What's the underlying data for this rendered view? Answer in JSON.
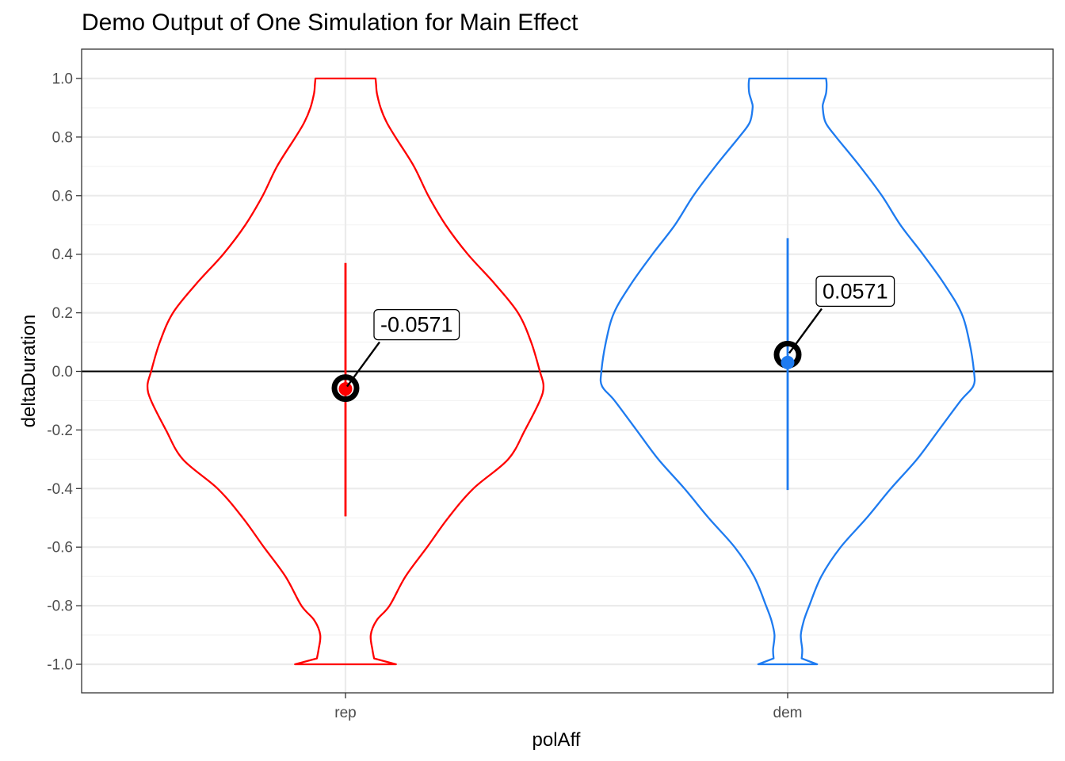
{
  "chart_data": {
    "type": "violin",
    "title": "Demo Output of One Simulation for Main Effect",
    "xlabel": "polAff",
    "ylabel": "deltaDuration",
    "categories": [
      "rep",
      "dem"
    ],
    "ylim": [
      -1.1,
      1.1
    ],
    "y_ticks": [
      "1.0",
      "0.8",
      "0.6",
      "0.4",
      "0.2",
      "0.0",
      "-0.2",
      "-0.4",
      "-0.6",
      "-0.8",
      "-1.0"
    ],
    "reference_line": 0.0,
    "grid": true,
    "colors": {
      "rep": "#ff0000",
      "dem": "#1e7bf0"
    },
    "series": [
      {
        "category": "rep",
        "color": "#ff0000",
        "point_mean": -0.06,
        "interval": [
          -0.495,
          0.37
        ],
        "highlight": -0.0571,
        "label": "-0.0571",
        "density_profile": [
          [
            1.0,
            0.107
          ],
          [
            0.98,
            0.109
          ],
          [
            0.95,
            0.112
          ],
          [
            0.9,
            0.125
          ],
          [
            0.85,
            0.147
          ],
          [
            0.8,
            0.178
          ],
          [
            0.7,
            0.244
          ],
          [
            0.6,
            0.295
          ],
          [
            0.5,
            0.357
          ],
          [
            0.4,
            0.436
          ],
          [
            0.3,
            0.531
          ],
          [
            0.2,
            0.615
          ],
          [
            0.1,
            0.662
          ],
          [
            0.0,
            0.693
          ],
          [
            -0.05,
            0.706
          ],
          [
            -0.1,
            0.693
          ],
          [
            -0.2,
            0.64
          ],
          [
            -0.3,
            0.58
          ],
          [
            -0.4,
            0.456
          ],
          [
            -0.5,
            0.366
          ],
          [
            -0.6,
            0.291
          ],
          [
            -0.7,
            0.214
          ],
          [
            -0.8,
            0.157
          ],
          [
            -0.85,
            0.111
          ],
          [
            -0.9,
            0.09
          ],
          [
            -0.95,
            0.096
          ],
          [
            -0.98,
            0.102
          ],
          [
            -1.0,
            0.18
          ]
        ]
      },
      {
        "category": "dem",
        "color": "#1e7bf0",
        "point_mean": 0.03,
        "interval": [
          -0.405,
          0.455
        ],
        "highlight": 0.0571,
        "label": "0.0571",
        "density_profile": [
          [
            1.0,
            0.137
          ],
          [
            0.98,
            0.139
          ],
          [
            0.95,
            0.137
          ],
          [
            0.92,
            0.128
          ],
          [
            0.9,
            0.125
          ],
          [
            0.85,
            0.135
          ],
          [
            0.8,
            0.173
          ],
          [
            0.7,
            0.258
          ],
          [
            0.6,
            0.336
          ],
          [
            0.5,
            0.402
          ],
          [
            0.4,
            0.482
          ],
          [
            0.3,
            0.557
          ],
          [
            0.2,
            0.619
          ],
          [
            0.1,
            0.648
          ],
          [
            0.0,
            0.664
          ],
          [
            -0.05,
            0.662
          ],
          [
            -0.1,
            0.617
          ],
          [
            -0.2,
            0.539
          ],
          [
            -0.3,
            0.461
          ],
          [
            -0.4,
            0.368
          ],
          [
            -0.5,
            0.282
          ],
          [
            -0.6,
            0.189
          ],
          [
            -0.7,
            0.12
          ],
          [
            -0.8,
            0.077
          ],
          [
            -0.85,
            0.058
          ],
          [
            -0.9,
            0.047
          ],
          [
            -0.95,
            0.052
          ],
          [
            -0.98,
            0.05
          ],
          [
            -1.0,
            0.105
          ]
        ]
      }
    ]
  }
}
